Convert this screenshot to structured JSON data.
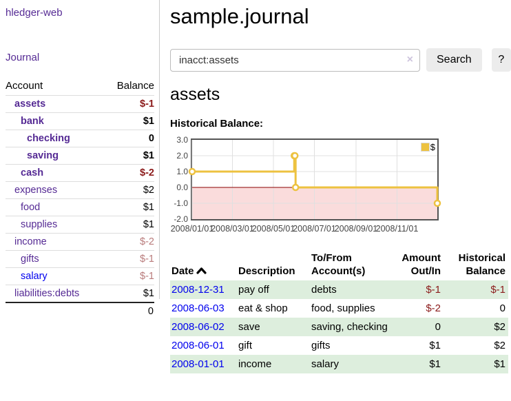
{
  "app": {
    "brand": "hledger-web",
    "nav_journal": "Journal"
  },
  "sidebar": {
    "header": {
      "account": "Account",
      "balance": "Balance"
    },
    "accounts": [
      {
        "name": "assets",
        "indent": 0,
        "bold": true,
        "balance": "$-1",
        "balance_style": "neg"
      },
      {
        "name": "bank",
        "indent": 1,
        "bold": true,
        "balance": "$1",
        "balance_style": "pos"
      },
      {
        "name": "checking",
        "indent": 2,
        "bold": true,
        "balance": "0",
        "balance_style": "pos"
      },
      {
        "name": "saving",
        "indent": 2,
        "bold": true,
        "balance": "$1",
        "balance_style": "pos"
      },
      {
        "name": "cash",
        "indent": 1,
        "bold": true,
        "balance": "$-2",
        "balance_style": "neg"
      },
      {
        "name": "expenses",
        "indent": 0,
        "bold": false,
        "balance": "$2",
        "balance_style": "pos"
      },
      {
        "name": "food",
        "indent": 1,
        "bold": false,
        "balance": "$1",
        "balance_style": "pos"
      },
      {
        "name": "supplies",
        "indent": 1,
        "bold": false,
        "balance": "$1",
        "balance_style": "pos"
      },
      {
        "name": "income",
        "indent": 0,
        "bold": false,
        "balance": "$-2",
        "balance_style": "neg-light"
      },
      {
        "name": "gifts",
        "indent": 1,
        "bold": false,
        "balance": "$-1",
        "balance_style": "neg-light"
      },
      {
        "name": "salary",
        "indent": 1,
        "bold": false,
        "balance": "$-1",
        "balance_style": "neg-light",
        "link_style": "blue"
      },
      {
        "name": "liabilities:debts",
        "indent": 0,
        "bold": false,
        "balance": "$1",
        "balance_style": "pos"
      }
    ],
    "total": "0"
  },
  "header": {
    "title": "sample.journal"
  },
  "search": {
    "value": "inacct:assets",
    "clear_icon": "×",
    "button_label": "Search",
    "help_label": "?"
  },
  "account_page": {
    "heading": "assets",
    "chart_label": "Historical Balance:"
  },
  "chart_data": {
    "type": "line",
    "style": "step",
    "title": "Historical Balance of assets",
    "series": [
      {
        "name": "$",
        "color": "#edc240",
        "x": [
          "2008-01-01",
          "2008-06-01",
          "2008-06-02",
          "2008-06-03",
          "2008-12-31"
        ],
        "y": [
          1,
          2,
          2,
          0,
          -1
        ]
      }
    ],
    "xrange": [
      "2008-01-01",
      "2008-12-31"
    ],
    "ylim": [
      -2,
      3
    ],
    "yticks": [
      "3.0",
      "2.0",
      "1.0",
      "0.0",
      "-1.0",
      "-2.0"
    ],
    "ytick_values": [
      3,
      2,
      1,
      0,
      -1,
      -2
    ],
    "xticks": [
      "2008/01/01",
      "2008/03/01",
      "2008/05/01",
      "2008/07/01",
      "2008/09/01",
      "2008/11/01"
    ],
    "xtick_dates": [
      "2008-01-01",
      "2008-03-01",
      "2008-05-01",
      "2008-07-01",
      "2008-09-01",
      "2008-11-01"
    ],
    "legend": "$",
    "legend_position": "top-right",
    "grid": true,
    "negative_region_color": "#fadcdc",
    "zero_line_color": "#8b0000",
    "grid_color": "#e0e0e0",
    "border_color": "#545454"
  },
  "register": {
    "columns": [
      {
        "line1": "Date",
        "line2": "",
        "align": "left",
        "sorted": true
      },
      {
        "line1": "Description",
        "line2": "",
        "align": "left"
      },
      {
        "line1": "To/From",
        "line2": "Account(s)",
        "align": "left"
      },
      {
        "line1": "Amount",
        "line2": "Out/In",
        "align": "right"
      },
      {
        "line1": "Historical",
        "line2": "Balance",
        "align": "right"
      }
    ],
    "rows": [
      {
        "date": "2008-12-31",
        "description": "pay off",
        "accounts": "debts",
        "amount": "$-1",
        "amount_neg": true,
        "balance": "$-1",
        "balance_neg": true
      },
      {
        "date": "2008-06-03",
        "description": "eat & shop",
        "accounts": "food, supplies",
        "amount": "$-2",
        "amount_neg": true,
        "balance": "0",
        "balance_neg": false
      },
      {
        "date": "2008-06-02",
        "description": "save",
        "accounts": "saving, checking",
        "amount": "0",
        "amount_neg": false,
        "balance": "$2",
        "balance_neg": false
      },
      {
        "date": "2008-06-01",
        "description": "gift",
        "accounts": "gifts",
        "amount": "$1",
        "amount_neg": false,
        "balance": "$2",
        "balance_neg": false
      },
      {
        "date": "2008-01-01",
        "description": "income",
        "accounts": "salary",
        "amount": "$1",
        "amount_neg": false,
        "balance": "$1",
        "balance_neg": false
      }
    ]
  }
}
